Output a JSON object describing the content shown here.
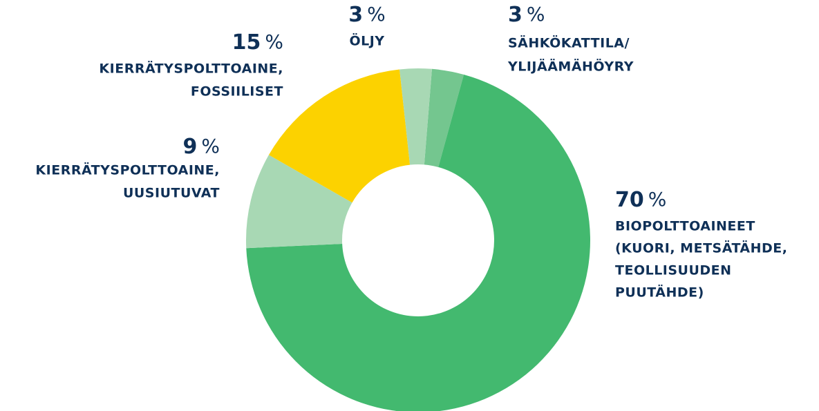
{
  "chart_data": {
    "type": "donut",
    "unit": "%",
    "categories": [
      [
        "SÄHKÖKATTILA/",
        "YLIJÄÄMÄHÖYRY"
      ],
      [
        "BIOPOLTTOAINEET",
        "(KUORI, METSÄTÄHDE,",
        "TEOLLISUUDEN",
        "PUUTÄHDE)"
      ],
      [
        "KIERRÄTYSPOLTTOAINE,",
        "UUSIUTUVAT"
      ],
      [
        "KIERRÄTYSPOLTTOAINE,",
        "FOSSIILISET"
      ],
      [
        "ÖLJY"
      ]
    ],
    "values": [
      3,
      70,
      9,
      15,
      3
    ],
    "colors": [
      "#74c68f",
      "#43b96f",
      "#a8d8b4",
      "#fcd200",
      "#a8d8b4"
    ]
  }
}
